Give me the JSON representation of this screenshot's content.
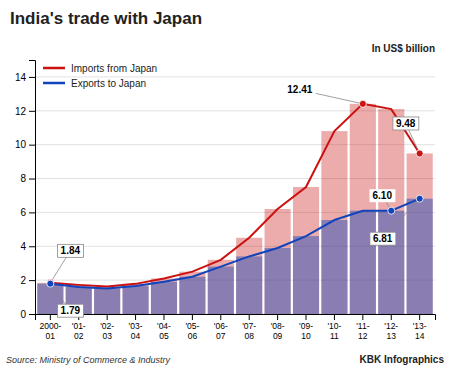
{
  "chart_data": {
    "type": "bar",
    "title": "India's trade with Japan",
    "subtitle": "In US$ billion",
    "source": "Source: Ministry of Commerce & Industry",
    "credit": "KBK Infographics",
    "categories": [
      "2000-\n01",
      "'01-\n02",
      "'02-\n03",
      "'03-\n04",
      "'04-\n05",
      "'05-\n06",
      "'06-\n07",
      "'07-\n08",
      "'08-\n09",
      "'09-\n10",
      "'10-\n11",
      "'11-\n12",
      "'12-\n13",
      "'13-\n14"
    ],
    "series": [
      {
        "name": "Imports from Japan",
        "color": "#cc1111",
        "values": [
          1.84,
          1.72,
          1.62,
          1.78,
          2.1,
          2.5,
          3.2,
          4.5,
          6.2,
          7.5,
          10.8,
          12.41,
          12.1,
          9.48
        ]
      },
      {
        "name": "Exports to Japan",
        "color": "#1144bb",
        "values": [
          1.79,
          1.6,
          1.5,
          1.65,
          1.9,
          2.2,
          2.8,
          3.4,
          3.9,
          4.6,
          5.55,
          6.1,
          6.1,
          6.81
        ]
      }
    ],
    "annotations": [
      {
        "text": "1.84",
        "series": "Imports from Japan",
        "category": "2000-\n01"
      },
      {
        "text": "1.79",
        "series": "Exports to Japan",
        "category": "2000-\n01"
      },
      {
        "text": "12.41",
        "series": "Imports from Japan",
        "category": "'11-\n12"
      },
      {
        "text": "9.48",
        "series": "Imports from Japan",
        "category": "'13-\n14"
      },
      {
        "text": "6.10",
        "series": "Exports to Japan",
        "category": "'12-\n13"
      },
      {
        "text": "6.81",
        "series": "Exports to Japan",
        "category": "'13-\n14"
      }
    ],
    "ylim": [
      0,
      15
    ],
    "yticks": [
      0,
      2,
      4,
      6,
      8,
      10,
      12,
      14
    ],
    "grid": true,
    "legend": "upper left"
  }
}
